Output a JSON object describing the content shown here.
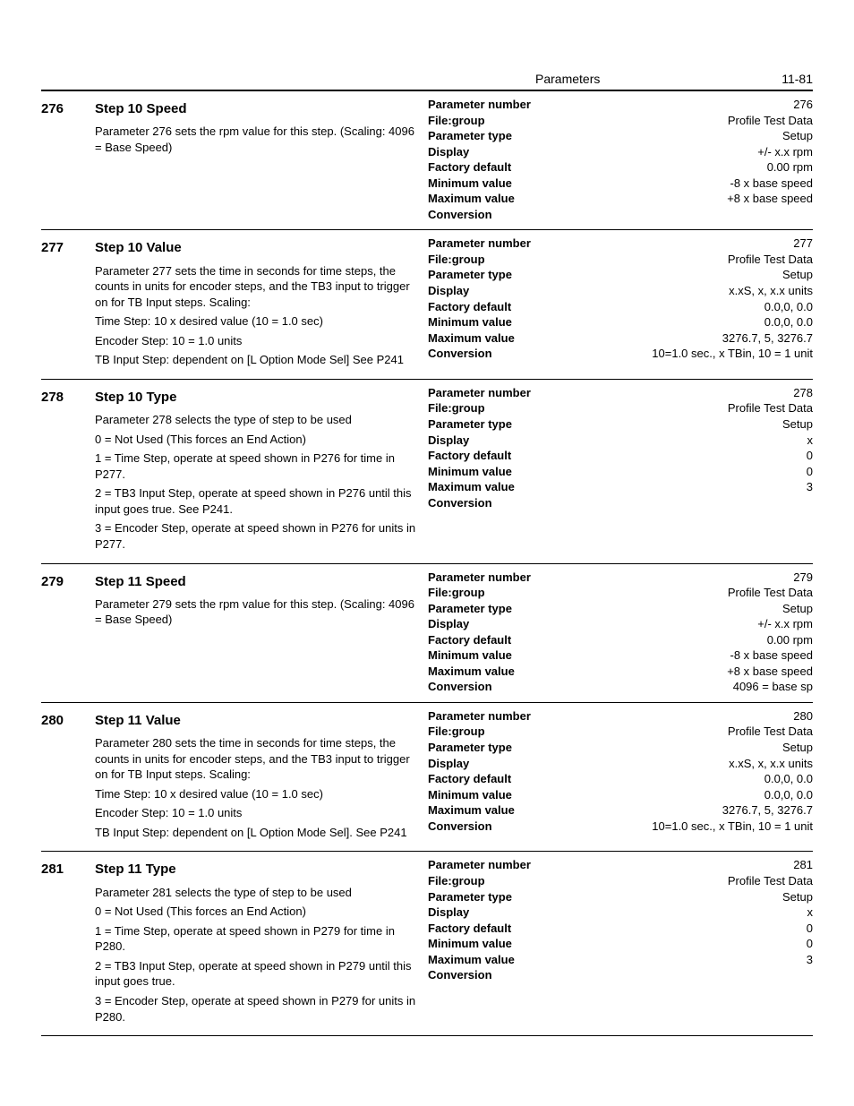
{
  "header": {
    "section": "Parameters",
    "page_label": "11-81"
  },
  "attr_labels": {
    "parameter_number": "Parameter number",
    "file_group": "File:group",
    "parameter_type": "Parameter type",
    "display": "Display",
    "factory_default": "Factory default",
    "minimum_value": "Minimum value",
    "maximum_value": "Maximum value",
    "conversion": "Conversion"
  },
  "params": [
    {
      "num": "276",
      "title": "Step 10 Speed",
      "desc": [
        "Parameter 276 sets the rpm value for this step. (Scaling: 4096 = Base Speed)"
      ],
      "attrs": {
        "parameter_number": "276",
        "file_group": "Profile Test Data",
        "parameter_type": "Setup",
        "display": "+/- x.x rpm",
        "factory_default": "0.00 rpm",
        "minimum_value": "-8 x base speed",
        "maximum_value": "+8 x base speed",
        "conversion": ""
      }
    },
    {
      "num": "277",
      "title": "Step 10 Value",
      "desc": [
        "Parameter 277 sets the time in seconds for time steps, the counts in units for encoder steps, and the TB3 input to trigger on for TB Input steps. Scaling:",
        "Time Step: 10 x desired value (10 = 1.0 sec)",
        "Encoder Step: 10 = 1.0 units",
        "TB Input Step: dependent on [L Option Mode Sel] See P241"
      ],
      "attrs": {
        "parameter_number": "277",
        "file_group": "Profile Test Data",
        "parameter_type": "Setup",
        "display": "x.xS, x, x.x units",
        "factory_default": "0.0,0, 0.0",
        "minimum_value": "0.0,0, 0.0",
        "maximum_value": "3276.7, 5, 3276.7",
        "conversion": "10=1.0 sec., x TBin, 10 = 1 unit"
      }
    },
    {
      "num": "278",
      "title": "Step 10 Type",
      "desc": [
        "Parameter 278 selects the type of step to be used",
        "0 = Not Used (This forces an End Action)",
        "1 = Time Step, operate at speed shown in P276 for time in P277.",
        "2 = TB3 Input Step, operate at speed shown in P276 until this input goes true. See P241.",
        "3 = Encoder Step, operate at speed shown in P276 for units in P277."
      ],
      "attrs": {
        "parameter_number": "278",
        "file_group": "Profile Test Data",
        "parameter_type": "Setup",
        "display": "x",
        "factory_default": "0",
        "minimum_value": "0",
        "maximum_value": "3",
        "conversion": ""
      }
    },
    {
      "num": "279",
      "title": "Step 11 Speed",
      "desc": [
        "Parameter 279 sets the rpm value for this step. (Scaling: 4096 = Base Speed)"
      ],
      "attrs": {
        "parameter_number": "279",
        "file_group": "Profile Test Data",
        "parameter_type": "Setup",
        "display": "+/- x.x rpm",
        "factory_default": "0.00 rpm",
        "minimum_value": "-8 x base speed",
        "maximum_value": "+8 x base speed",
        "conversion": "4096 = base sp"
      }
    },
    {
      "num": "280",
      "title": "Step 11 Value",
      "desc": [
        "Parameter 280 sets the time in seconds for time steps, the counts in units for encoder steps, and the TB3 input to trigger on for TB Input steps. Scaling:",
        "Time Step: 10 x desired value (10 = 1.0 sec)",
        "Encoder Step: 10 = 1.0 units",
        "TB Input Step: dependent on [L Option Mode Sel]. See P241"
      ],
      "attrs": {
        "parameter_number": "280",
        "file_group": "Profile Test Data",
        "parameter_type": "Setup",
        "display": "x.xS, x, x.x units",
        "factory_default": "0.0,0, 0.0",
        "minimum_value": "0.0,0, 0.0",
        "maximum_value": "3276.7, 5, 3276.7",
        "conversion": "10=1.0 sec., x TBin, 10 = 1 unit"
      }
    },
    {
      "num": "281",
      "title": "Step 11 Type",
      "desc": [
        "Parameter 281 selects the type of step to be used",
        "0 = Not Used (This forces an End Action)",
        "1 = Time Step, operate at speed shown in P279 for time in P280.",
        "2 = TB3 Input Step, operate at speed shown in P279 until this input goes true.",
        "3 = Encoder Step, operate at speed shown in P279 for units in P280."
      ],
      "attrs": {
        "parameter_number": "281",
        "file_group": "Profile Test Data",
        "parameter_type": "Setup",
        "display": "x",
        "factory_default": "0",
        "minimum_value": "0",
        "maximum_value": "3",
        "conversion": ""
      }
    }
  ]
}
